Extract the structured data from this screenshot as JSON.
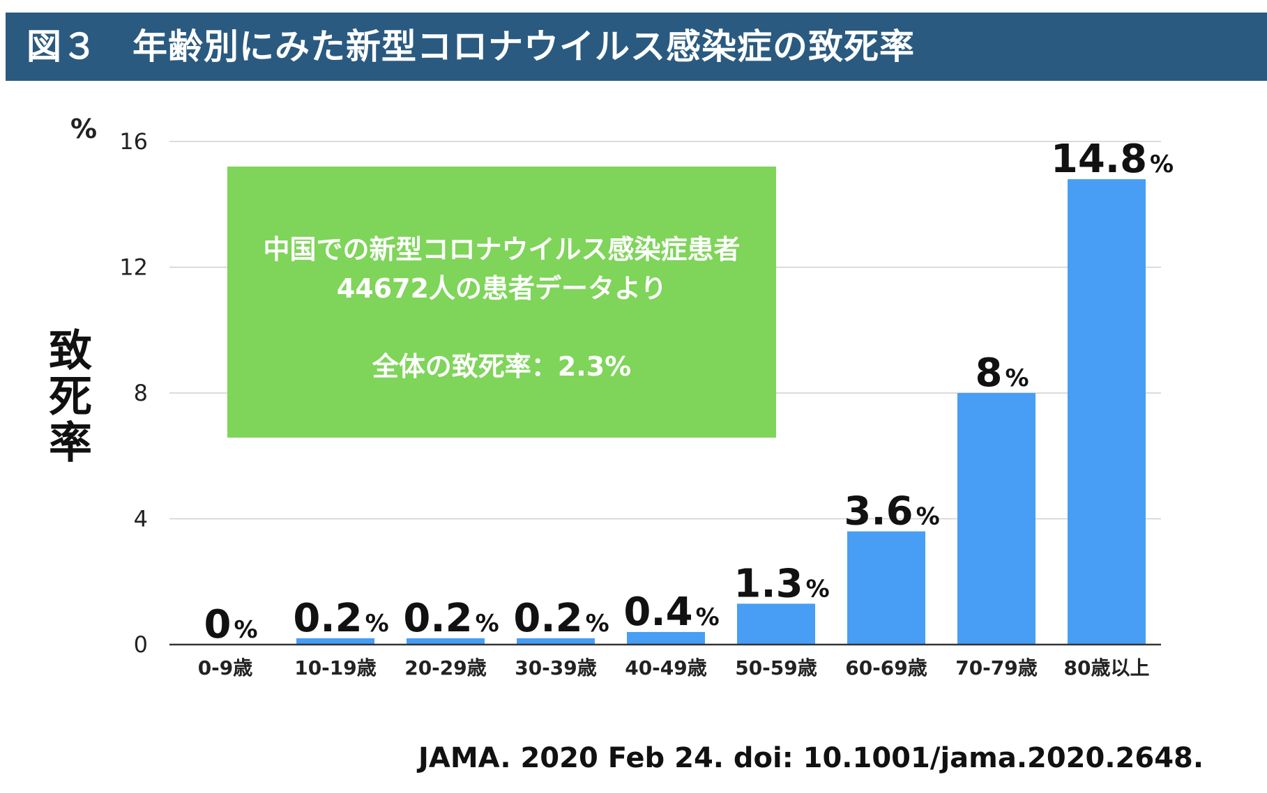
{
  "header": {
    "figure_label": "図３",
    "title": "年齢別にみた新型コロナウイルス感染症の致死率"
  },
  "colors": {
    "header_bg": "#2a5a80",
    "bar": "#479ef4",
    "infobox_bg": "#7fd45a"
  },
  "infobox": {
    "line1": "中国での新型コロナウイルス感染症患者",
    "line2": "44672人の患者データより",
    "line3": "全体の致死率：2.3%"
  },
  "chart_data": {
    "type": "bar",
    "title": "年齢別にみた新型コロナウイルス感染症の致死率",
    "xlabel": "",
    "ylabel": "致死率",
    "y_unit": "%",
    "ylim": [
      0,
      16
    ],
    "yticks": [
      0,
      4,
      8,
      12,
      16
    ],
    "grid": true,
    "categories": [
      "0-9歳",
      "10-19歳",
      "20-29歳",
      "30-39歳",
      "40-49歳",
      "50-59歳",
      "60-69歳",
      "70-79歳",
      "80歳以上"
    ],
    "values": [
      0,
      0.2,
      0.2,
      0.2,
      0.4,
      1.3,
      3.6,
      8,
      14.8
    ],
    "value_labels": [
      "0",
      "0.2",
      "0.2",
      "0.2",
      "0.4",
      "1.3",
      "3.6",
      "8",
      "14.8"
    ],
    "value_suffix": "%"
  },
  "source": "JAMA. 2020 Feb 24. doi: 10.1001/jama.2020.2648."
}
